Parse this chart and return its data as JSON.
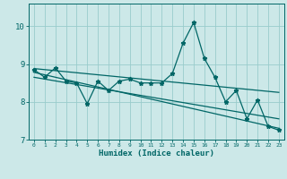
{
  "xlabel": "Humidex (Indice chaleur)",
  "ylabel": "",
  "bg_color": "#cce8e8",
  "line_color": "#006666",
  "grid_color": "#99cccc",
  "xlim": [
    -0.5,
    23.5
  ],
  "ylim": [
    7.0,
    10.6
  ],
  "yticks": [
    7,
    8,
    9,
    10
  ],
  "xticks": [
    0,
    1,
    2,
    3,
    4,
    5,
    6,
    7,
    8,
    9,
    10,
    11,
    12,
    13,
    14,
    15,
    16,
    17,
    18,
    19,
    20,
    21,
    22,
    23
  ],
  "main_x": [
    0,
    1,
    2,
    3,
    4,
    5,
    6,
    7,
    8,
    9,
    10,
    11,
    12,
    13,
    14,
    15,
    16,
    17,
    18,
    19,
    20,
    21,
    22,
    23
  ],
  "main_y": [
    8.85,
    8.65,
    8.9,
    8.55,
    8.5,
    7.95,
    8.55,
    8.3,
    8.55,
    8.6,
    8.5,
    8.5,
    8.5,
    8.75,
    9.55,
    10.1,
    9.15,
    8.65,
    8.0,
    8.3,
    7.55,
    8.05,
    7.35,
    7.25
  ],
  "trend1_x": [
    0,
    23
  ],
  "trend1_y": [
    8.88,
    8.25
  ],
  "trend2_x": [
    0,
    23
  ],
  "trend2_y": [
    8.78,
    7.3
  ],
  "trend3_x": [
    0,
    23
  ],
  "trend3_y": [
    8.65,
    7.55
  ]
}
